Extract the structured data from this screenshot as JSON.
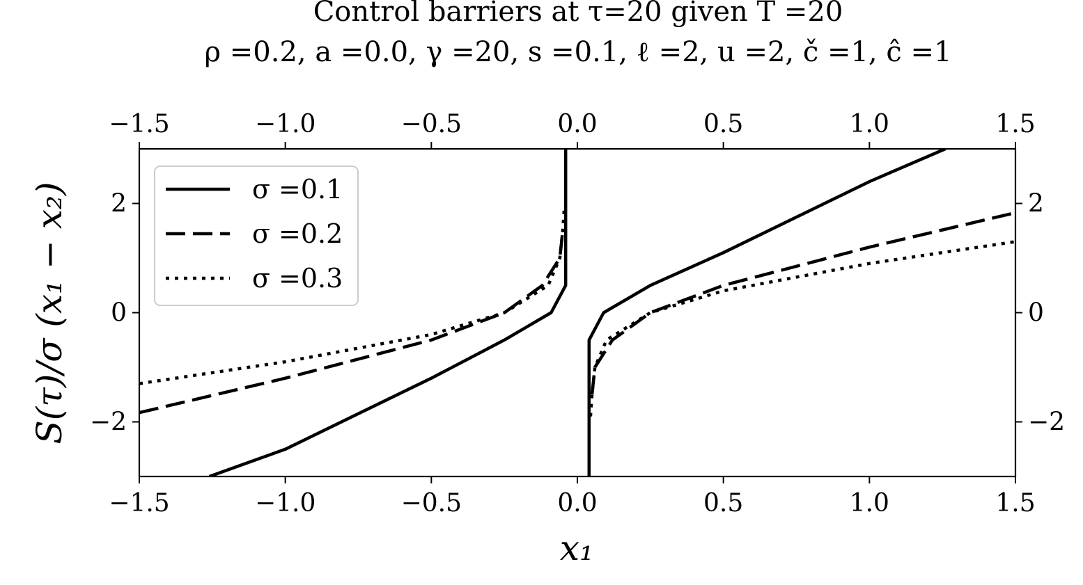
{
  "chart_data": {
    "type": "line",
    "title": "Control barriers at τ=20 given T =20",
    "subtitle": "ρ =0.2, a =0.0, γ =20, s =0.1, ℓ =2, u =2, č =1, ĉ =1",
    "xlabel": "x₁",
    "ylabel": "S(τ)/σ (x₁ − x₂)",
    "xlim": [
      -1.5,
      1.5
    ],
    "ylim": [
      -3,
      3
    ],
    "x_ticks": [
      "−1.5",
      "−1.0",
      "−0.5",
      "0.0",
      "0.5",
      "1.0",
      "1.5"
    ],
    "x_tick_values": [
      -1.5,
      -1.0,
      -0.5,
      0.0,
      0.5,
      1.0,
      1.5
    ],
    "y_ticks": [
      "−2",
      "0",
      "2"
    ],
    "y_tick_values": [
      -2,
      0,
      2
    ],
    "grid": false,
    "legend_position": "upper-left",
    "series": [
      {
        "name": "σ =0.1",
        "style": "solid",
        "segments": [
          [
            [
              -1.26,
              -3.0
            ],
            [
              -1.0,
              -2.5
            ],
            [
              -0.5,
              -1.2
            ],
            [
              -0.25,
              -0.5
            ],
            [
              -0.09,
              0.0
            ],
            [
              -0.04,
              0.5
            ],
            [
              -0.04,
              3.0
            ]
          ],
          [
            [
              0.04,
              -3.0
            ],
            [
              0.04,
              -0.5
            ],
            [
              0.09,
              0.0
            ],
            [
              0.25,
              0.5
            ],
            [
              0.5,
              1.1
            ],
            [
              1.0,
              2.4
            ],
            [
              1.26,
              3.0
            ]
          ]
        ]
      },
      {
        "name": "σ =0.2",
        "style": "dashed",
        "segments": [
          [
            [
              -1.5,
              -1.83
            ],
            [
              -1.0,
              -1.2
            ],
            [
              -0.5,
              -0.5
            ],
            [
              -0.25,
              0.0
            ],
            [
              -0.12,
              0.5
            ],
            [
              -0.06,
              1.0
            ],
            [
              -0.05,
              1.5
            ]
          ],
          [
            [
              0.05,
              -1.5
            ],
            [
              0.06,
              -1.0
            ],
            [
              0.12,
              -0.5
            ],
            [
              0.25,
              0.0
            ],
            [
              0.5,
              0.5
            ],
            [
              1.0,
              1.2
            ],
            [
              1.5,
              1.83
            ]
          ]
        ]
      },
      {
        "name": "σ =0.3",
        "style": "dotted",
        "segments": [
          [
            [
              -1.5,
              -1.3
            ],
            [
              -1.0,
              -0.9
            ],
            [
              -0.5,
              -0.4
            ],
            [
              -0.25,
              0.0
            ],
            [
              -0.1,
              0.5
            ],
            [
              -0.06,
              1.0
            ],
            [
              -0.05,
              1.5
            ],
            [
              -0.045,
              1.9
            ]
          ],
          [
            [
              0.045,
              -1.9
            ],
            [
              0.05,
              -1.5
            ],
            [
              0.06,
              -1.0
            ],
            [
              0.1,
              -0.5
            ],
            [
              0.25,
              0.0
            ],
            [
              0.5,
              0.4
            ],
            [
              1.0,
              0.9
            ],
            [
              1.5,
              1.3
            ]
          ]
        ]
      }
    ]
  }
}
